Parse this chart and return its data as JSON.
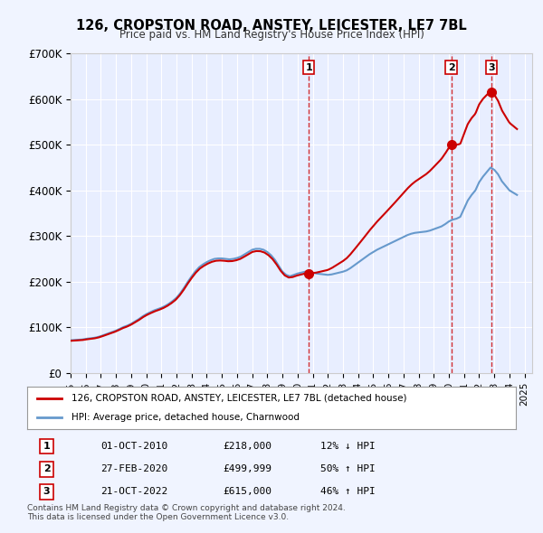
{
  "title": "126, CROPSTON ROAD, ANSTEY, LEICESTER, LE7 7BL",
  "subtitle": "Price paid vs. HM Land Registry's House Price Index (HPI)",
  "ylabel_ticks": [
    "£0",
    "£100K",
    "£200K",
    "£300K",
    "£400K",
    "£500K",
    "£600K",
    "£700K"
  ],
  "ylim": [
    0,
    700000
  ],
  "xlim_start": 1995.0,
  "xlim_end": 2025.5,
  "background_color": "#f0f4ff",
  "plot_bg_color": "#e8eeff",
  "grid_color": "#ffffff",
  "red_line_color": "#cc0000",
  "blue_line_color": "#6699cc",
  "legend_label_red": "126, CROPSTON ROAD, ANSTEY, LEICESTER, LE7 7BL (detached house)",
  "legend_label_blue": "HPI: Average price, detached house, Charnwood",
  "transactions": [
    {
      "num": 1,
      "date": "01-OCT-2010",
      "price": "£218,000",
      "pct": "12% ↓ HPI",
      "year": 2010.75
    },
    {
      "num": 2,
      "date": "27-FEB-2020",
      "price": "£499,999",
      "pct": "50% ↑ HPI",
      "year": 2020.15
    },
    {
      "num": 3,
      "date": "21-OCT-2022",
      "price": "£615,000",
      "pct": "46% ↑ HPI",
      "year": 2022.8
    }
  ],
  "footer1": "Contains HM Land Registry data © Crown copyright and database right 2024.",
  "footer2": "This data is licensed under the Open Government Licence v3.0.",
  "hpi_data": {
    "years": [
      1995.0,
      1995.25,
      1995.5,
      1995.75,
      1996.0,
      1996.25,
      1996.5,
      1996.75,
      1997.0,
      1997.25,
      1997.5,
      1997.75,
      1998.0,
      1998.25,
      1998.5,
      1998.75,
      1999.0,
      1999.25,
      1999.5,
      1999.75,
      2000.0,
      2000.25,
      2000.5,
      2000.75,
      2001.0,
      2001.25,
      2001.5,
      2001.75,
      2002.0,
      2002.25,
      2002.5,
      2002.75,
      2003.0,
      2003.25,
      2003.5,
      2003.75,
      2004.0,
      2004.25,
      2004.5,
      2004.75,
      2005.0,
      2005.25,
      2005.5,
      2005.75,
      2006.0,
      2006.25,
      2006.5,
      2006.75,
      2007.0,
      2007.25,
      2007.5,
      2007.75,
      2008.0,
      2008.25,
      2008.5,
      2008.75,
      2009.0,
      2009.25,
      2009.5,
      2009.75,
      2010.0,
      2010.25,
      2010.5,
      2010.75,
      2011.0,
      2011.25,
      2011.5,
      2011.75,
      2012.0,
      2012.25,
      2012.5,
      2012.75,
      2013.0,
      2013.25,
      2013.5,
      2013.75,
      2014.0,
      2014.25,
      2014.5,
      2014.75,
      2015.0,
      2015.25,
      2015.5,
      2015.75,
      2016.0,
      2016.25,
      2016.5,
      2016.75,
      2017.0,
      2017.25,
      2017.5,
      2017.75,
      2018.0,
      2018.25,
      2018.5,
      2018.75,
      2019.0,
      2019.25,
      2019.5,
      2019.75,
      2020.0,
      2020.25,
      2020.5,
      2020.75,
      2021.0,
      2021.25,
      2021.5,
      2021.75,
      2022.0,
      2022.25,
      2022.5,
      2022.75,
      2023.0,
      2023.25,
      2023.5,
      2023.75,
      2024.0,
      2024.25,
      2024.5
    ],
    "values": [
      72000,
      72500,
      73000,
      73500,
      75000,
      76000,
      77000,
      78500,
      81000,
      84000,
      87000,
      90000,
      93000,
      97000,
      101000,
      104000,
      108000,
      113000,
      118000,
      124000,
      129000,
      133000,
      137000,
      140000,
      143000,
      147000,
      152000,
      158000,
      165000,
      175000,
      187000,
      200000,
      212000,
      223000,
      232000,
      238000,
      243000,
      247000,
      250000,
      251000,
      251000,
      250000,
      249000,
      250000,
      252000,
      255000,
      260000,
      265000,
      270000,
      272000,
      272000,
      270000,
      265000,
      258000,
      248000,
      235000,
      222000,
      215000,
      212000,
      215000,
      218000,
      220000,
      222000,
      222000,
      220000,
      218000,
      217000,
      216000,
      215000,
      216000,
      218000,
      220000,
      222000,
      225000,
      230000,
      236000,
      242000,
      248000,
      254000,
      260000,
      265000,
      270000,
      274000,
      278000,
      282000,
      286000,
      290000,
      294000,
      298000,
      302000,
      305000,
      307000,
      308000,
      309000,
      310000,
      312000,
      315000,
      318000,
      321000,
      326000,
      332000,
      336000,
      338000,
      342000,
      360000,
      378000,
      390000,
      400000,
      418000,
      430000,
      440000,
      450000,
      445000,
      435000,
      420000,
      410000,
      400000,
      395000,
      390000
    ]
  },
  "sale_points": {
    "years": [
      2010.75,
      2020.15,
      2022.8
    ],
    "prices": [
      218000,
      499999,
      615000
    ]
  },
  "red_line_data": {
    "years": [
      1995.0,
      2010.75,
      2010.75,
      2020.15,
      2020.15,
      2022.8,
      2022.8,
      2024.5
    ],
    "values": [
      55000,
      218000,
      218000,
      499999,
      499999,
      615000,
      615000,
      590000
    ]
  }
}
